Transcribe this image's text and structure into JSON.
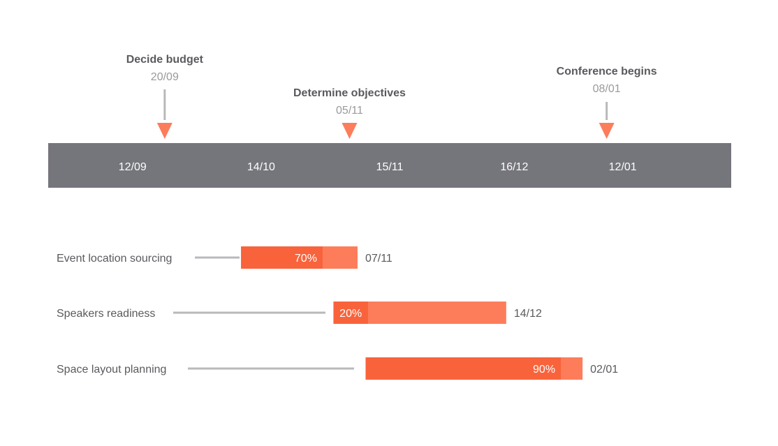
{
  "colors": {
    "timeline_band": "#75757c",
    "marker": "#fb7d5b",
    "connector": "#b9b9bc",
    "bar_done": "#f8633c",
    "bar_remaining": "#fd7d5b"
  },
  "chart_data": {
    "type": "bar",
    "axis": {
      "start": "2018-08-22",
      "end": "2019-02-08",
      "ticks": [
        "12/09",
        "14/10",
        "15/11",
        "16/12",
        "12/01"
      ],
      "tick_dates": [
        "2018-09-12",
        "2018-10-14",
        "2018-11-15",
        "2018-12-16",
        "2019-01-12"
      ]
    },
    "milestones": [
      {
        "title": "Decide budget",
        "label": "20/09",
        "date": "2018-09-20"
      },
      {
        "title": "Determine objectives",
        "label": "05/11",
        "date": "2018-11-05"
      },
      {
        "title": "Conference begins",
        "label": "08/01",
        "date": "2019-01-08"
      }
    ],
    "tasks": [
      {
        "name": "Event location sourcing",
        "start": "2018-10-09",
        "end": "2018-11-07",
        "end_label": "07/11",
        "progress": 70,
        "progress_label": "70%"
      },
      {
        "name": "Speakers readiness",
        "start": "2018-11-01",
        "end": "2018-12-14",
        "end_label": "14/12",
        "progress": 20,
        "progress_label": "20%"
      },
      {
        "name": "Space layout planning",
        "start": "2018-11-09",
        "end": "2019-01-02",
        "end_label": "02/01",
        "progress": 90,
        "progress_label": "90%"
      }
    ]
  }
}
